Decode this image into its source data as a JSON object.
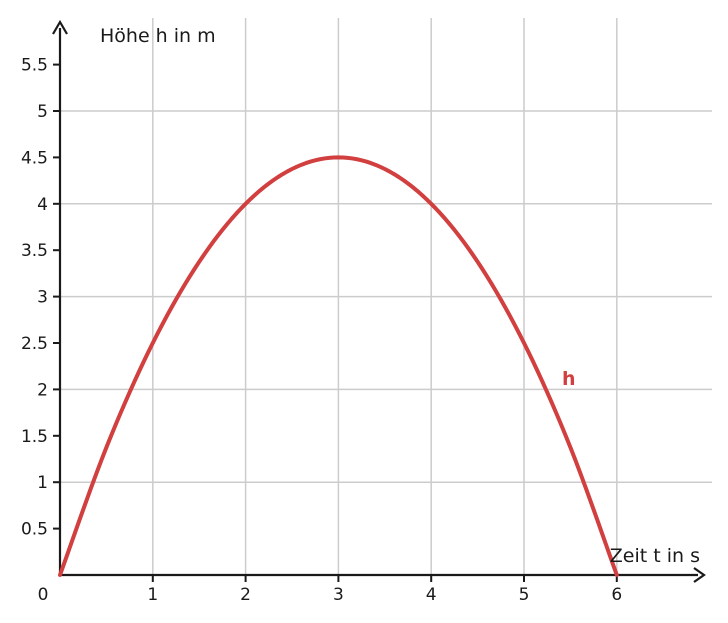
{
  "chart_data": {
    "type": "line",
    "xlabel": "Zeit t in s",
    "ylabel": "Höhe h in m",
    "xlim": [
      0,
      6
    ],
    "ylim": [
      0,
      5.5
    ],
    "x_ticks": [
      "0",
      "1",
      "2",
      "3",
      "4",
      "5",
      "6"
    ],
    "y_ticks": [
      "0.5",
      "1",
      "1.5",
      "2",
      "2.5",
      "3",
      "3.5",
      "4",
      "4.5",
      "5",
      "5.5"
    ],
    "grid": true,
    "series": [
      {
        "name": "h",
        "color": "#d13f3f",
        "x": [
          0,
          0.5,
          1,
          1.5,
          2,
          2.5,
          3,
          3.5,
          4,
          4.5,
          5,
          5.5,
          6
        ],
        "y": [
          0,
          1.375,
          2.5,
          3.375,
          4,
          4.375,
          4.5,
          4.375,
          4,
          3.375,
          2.5,
          1.375,
          0
        ]
      }
    ]
  }
}
